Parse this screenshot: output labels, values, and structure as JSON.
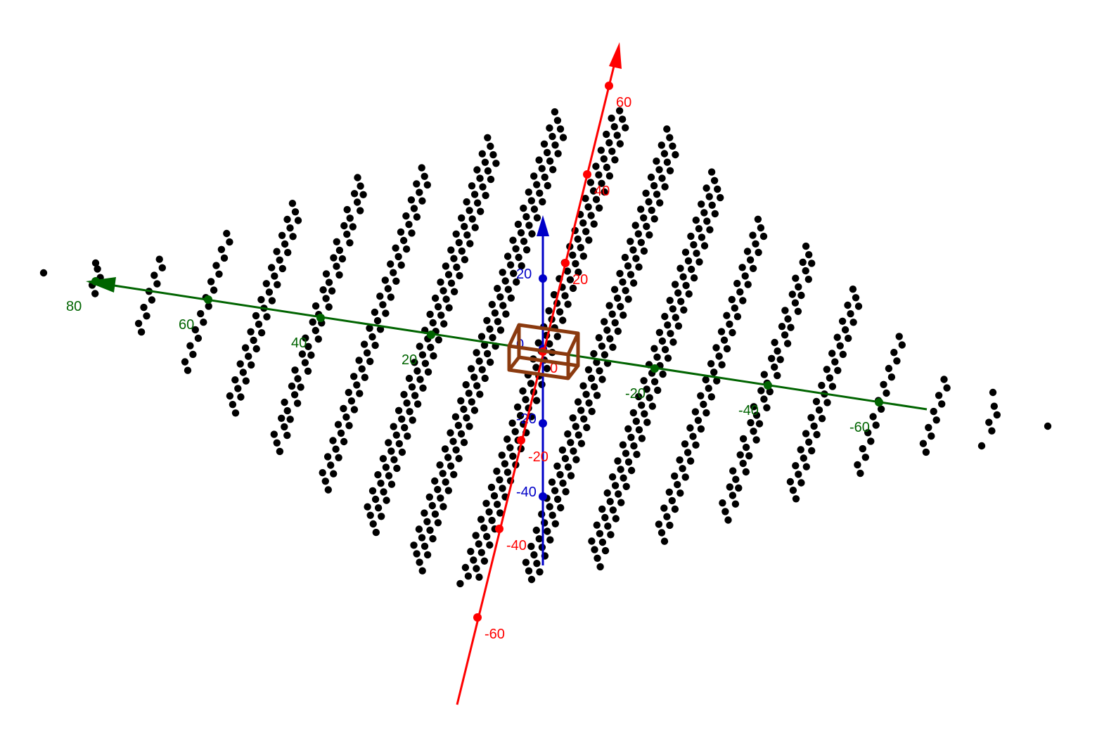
{
  "view": {
    "type": "3d-graphics",
    "background": "#ffffff"
  },
  "axes": {
    "x": {
      "color": "#ff0000",
      "tick_labels": [
        "-60",
        "-40",
        "-20",
        "0",
        "20",
        "40",
        "60"
      ]
    },
    "y": {
      "color": "#006400",
      "tick_labels": [
        "-60",
        "-40",
        "-20",
        "20",
        "40",
        "60",
        "80"
      ]
    },
    "z": {
      "color": "#0000c8",
      "tick_labels": [
        "-40",
        "-20",
        "0",
        "20"
      ]
    }
  },
  "point_cloud": {
    "color": "#000000",
    "shape": "filled circles",
    "pattern": "rhombus of slanted point bands"
  },
  "origin_box": {
    "color": "#8b3a0f",
    "shape": "wireframe cube at origin"
  }
}
